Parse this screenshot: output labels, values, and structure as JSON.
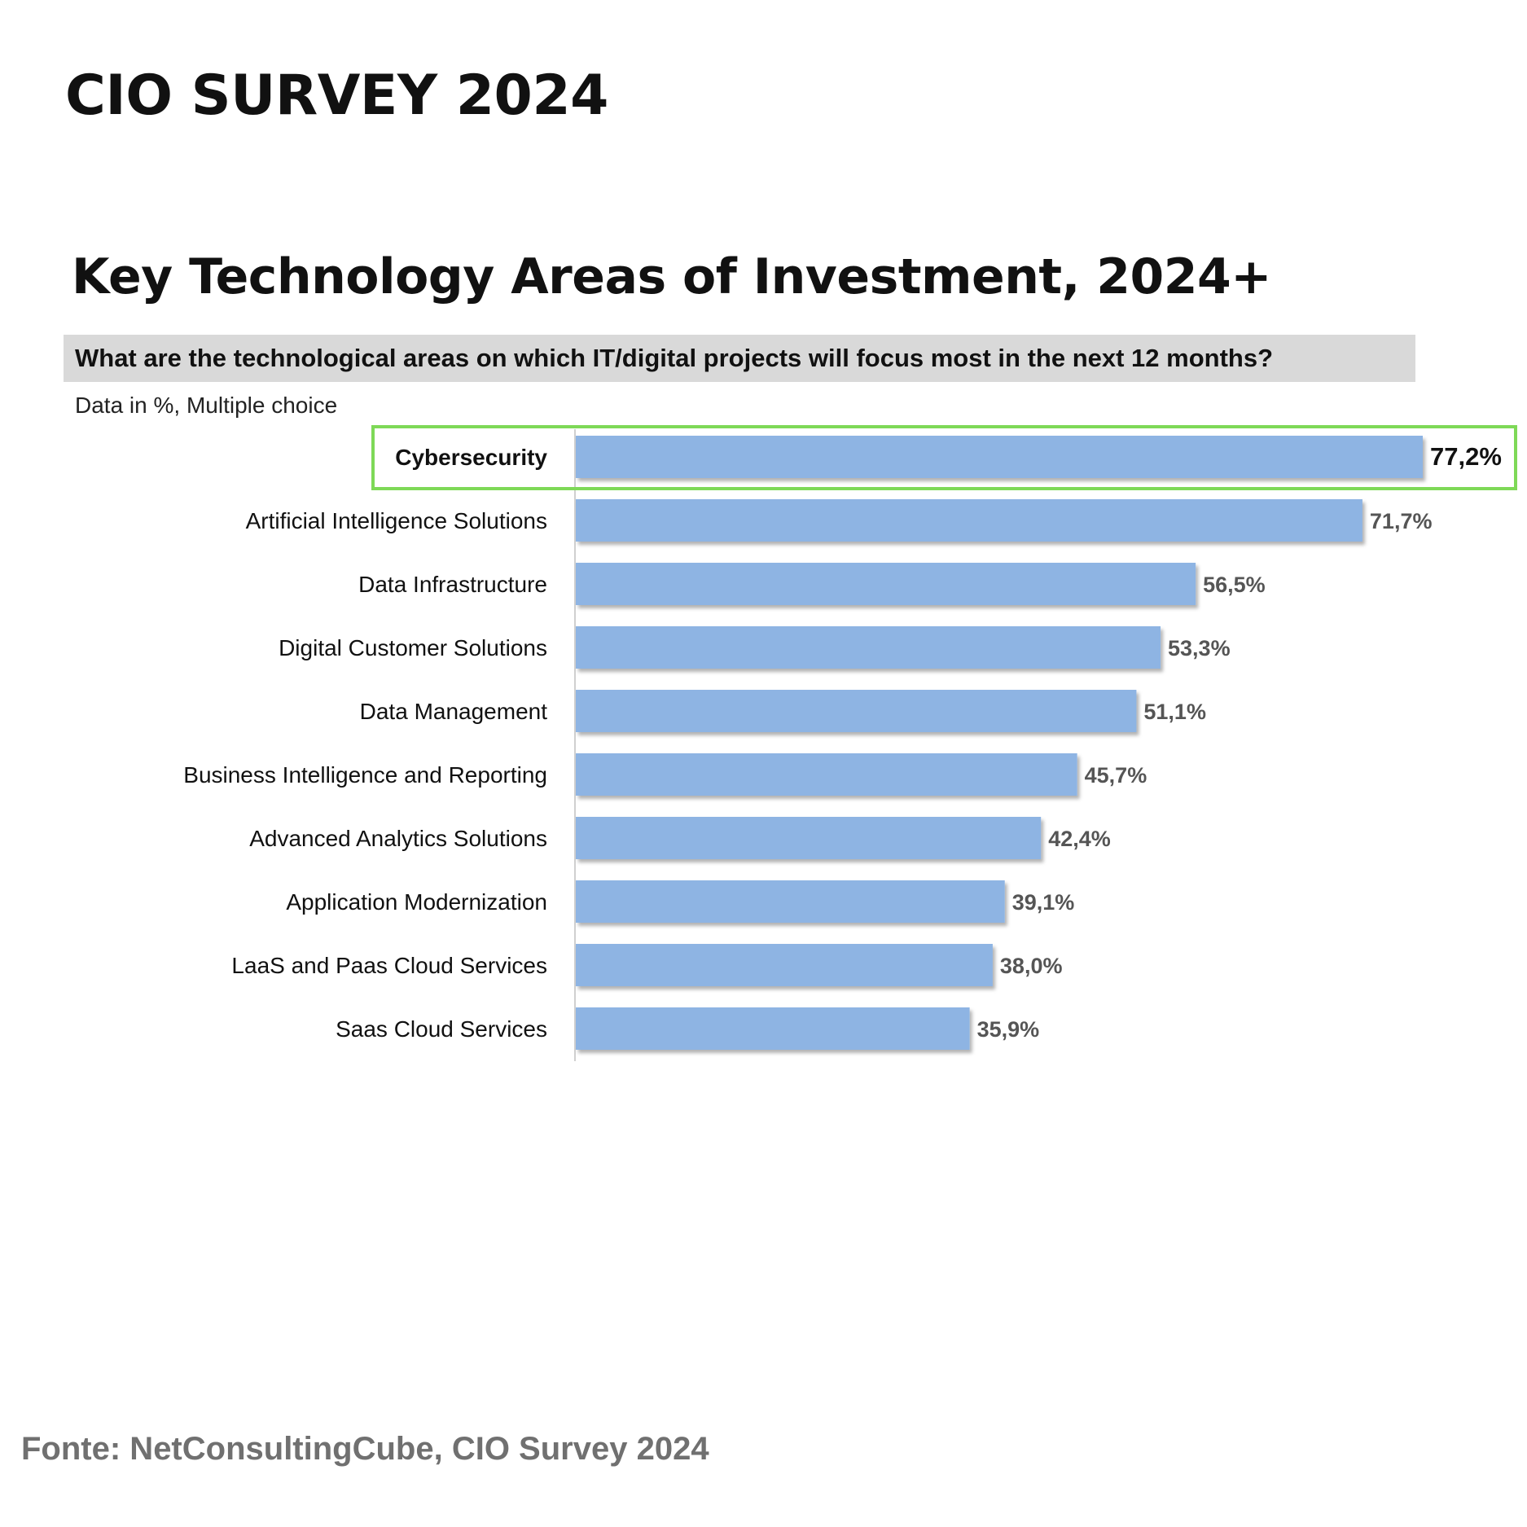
{
  "header": "CIO SURVEY 2024",
  "chart_data": {
    "type": "bar",
    "orientation": "horizontal",
    "title": "Key Technology Areas of Investment, 2024+",
    "subtitle": "What are the technological areas on which IT/digital projects will focus most in the next 12 months?",
    "note": "Data in %, Multiple choice",
    "categories": [
      "Cybersecurity",
      "Artificial Intelligence Solutions",
      "Data Infrastructure",
      "Digital Customer Solutions",
      "Data Management",
      "Business Intelligence and Reporting",
      "Advanced Analytics Solutions",
      "Application Modernization",
      "LaaS and Paas Cloud Services",
      "Saas Cloud Services"
    ],
    "values": [
      77.2,
      71.7,
      56.5,
      53.3,
      51.1,
      45.7,
      42.4,
      39.1,
      38.0,
      35.9
    ],
    "value_labels": [
      "77,2%",
      "71,7%",
      "56,5%",
      "53,3%",
      "51,1%",
      "45,7%",
      "42,4%",
      "39,1%",
      "38,0%",
      "35,9%"
    ],
    "highlight_index": 0,
    "bar_color": "#8eb4e3",
    "highlight_border_color": "#7ed957",
    "xlim": [
      0,
      77.2
    ],
    "grid": false,
    "legend": "none"
  },
  "source": "Fonte: NetConsultingCube, CIO Survey 2024"
}
